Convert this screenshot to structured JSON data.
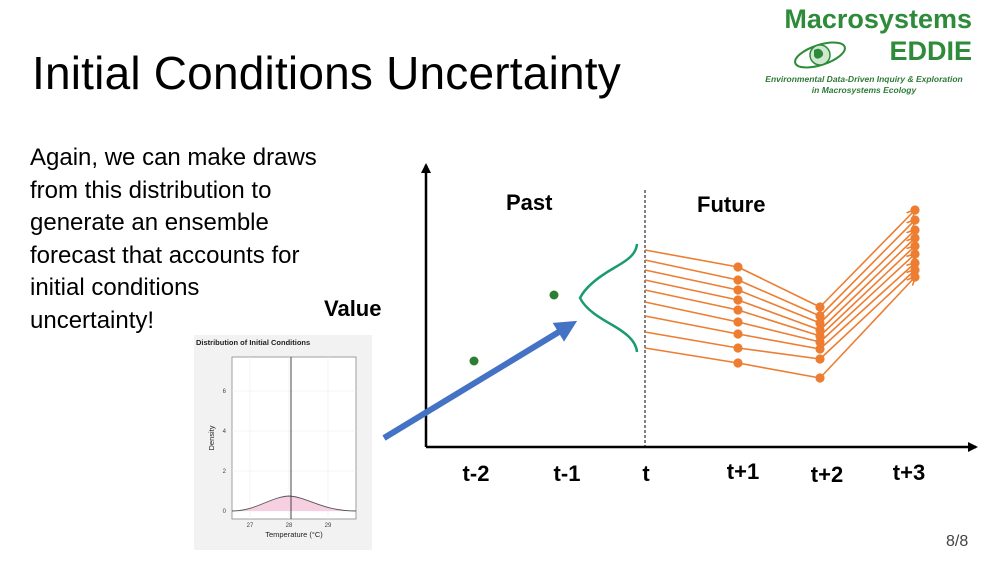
{
  "slide": {
    "title": "Initial Conditions Uncertainty",
    "body_text": "Again, we can make draws from this distribution to generate an ensemble forecast that accounts for initial conditions uncertainty!",
    "page_number": "8/8"
  },
  "logo": {
    "line1": "Macrosystems",
    "line2": "EDDIE",
    "subtitle1": "Environmental Data-Driven Inquiry & Exploration",
    "subtitle2": "in Macrosystems Ecology"
  },
  "diagram": {
    "y_label": "Value",
    "past_label": "Past",
    "future_label": "Future",
    "time_labels": [
      "t-2",
      "t-1",
      "t",
      "t+1",
      "t+2",
      "t+3"
    ],
    "colors": {
      "observation": "#2e7d32",
      "distribution": "#1a9b6e",
      "ensemble": "#ed7d31",
      "arrow": "#4472c4"
    }
  },
  "inset_chart": {
    "title": "Distribution of Initial Conditions",
    "xlabel": "Temperature (°C)",
    "ylabel": "Density",
    "x_ticks": [
      "27",
      "28",
      "29"
    ],
    "y_ticks": [
      "0",
      "2",
      "4",
      "6"
    ]
  }
}
